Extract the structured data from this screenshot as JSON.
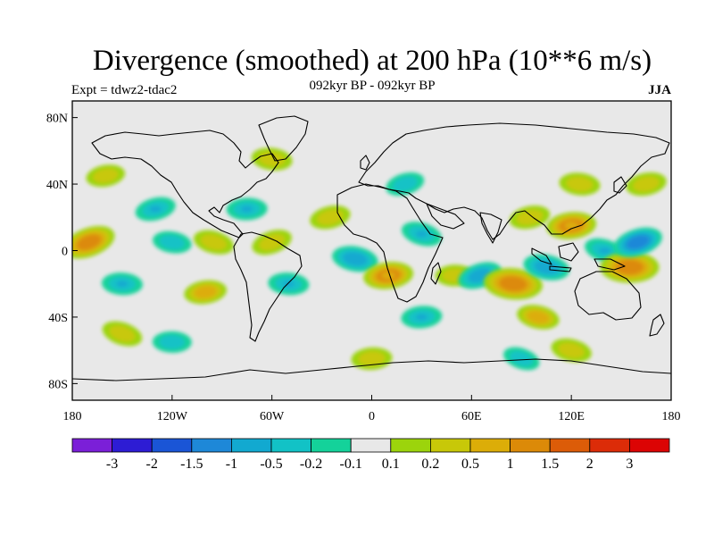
{
  "title": "Divergence (smoothed) at 200 hPa (10**6 m/s)",
  "experiment": "Expt = tdwz2-tdac2",
  "subtitle": "092kyr BP - 092kyr BP",
  "season": "JJA",
  "map": {
    "projection": "cylindrical-equidistant",
    "lon_range": [
      -180,
      180
    ],
    "lat_range": [
      -90,
      90
    ],
    "x_ticks": [
      {
        "lon": -180,
        "label": "180"
      },
      {
        "lon": -120,
        "label": "120W"
      },
      {
        "lon": -60,
        "label": "60W"
      },
      {
        "lon": 0,
        "label": "0"
      },
      {
        "lon": 60,
        "label": "60E"
      },
      {
        "lon": 120,
        "label": "120E"
      },
      {
        "lon": 180,
        "label": "180"
      }
    ],
    "y_ticks": [
      {
        "lat": 80,
        "label": "80N"
      },
      {
        "lat": 40,
        "label": "40N"
      },
      {
        "lat": 0,
        "label": "0"
      },
      {
        "lat": -40,
        "label": "40S"
      },
      {
        "lat": -80,
        "label": "80S"
      }
    ],
    "background_color": "#e8e8e8",
    "coastline_color": "#000000"
  },
  "colorbar": {
    "colors": [
      "#7b1fd8",
      "#2d1cd4",
      "#1a55d6",
      "#1e88d8",
      "#12a9d0",
      "#12c2c6",
      "#14d29a",
      "#e8e8e8",
      "#9cd40c",
      "#c8c808",
      "#dcad08",
      "#dc8a08",
      "#dc5c08",
      "#dc2c08",
      "#dc0404"
    ],
    "labels": [
      "-3",
      "-2",
      "-1.5",
      "-1",
      "-0.5",
      "-0.2",
      "-0.1",
      "0.1",
      "0.2",
      "0.5",
      "1",
      "1.5",
      "2",
      "3"
    ]
  },
  "chart_data": {
    "type": "heatmap",
    "title": "Divergence (smoothed) at 200 hPa (10**6 m/s)",
    "subtitle": "092kyr BP - 092kyr BP",
    "levels": [
      -3,
      -2,
      -1.5,
      -1,
      -0.5,
      -0.2,
      -0.1,
      0.1,
      0.2,
      0.5,
      1,
      1.5,
      2,
      3
    ],
    "xlim": [
      -180,
      180
    ],
    "ylim": [
      -90,
      90
    ],
    "features": [
      {
        "lon": -170,
        "lat": 5,
        "value": 1.2
      },
      {
        "lon": -150,
        "lat": -20,
        "value": -0.5
      },
      {
        "lon": -130,
        "lat": 25,
        "value": -0.5
      },
      {
        "lon": -120,
        "lat": 5,
        "value": -0.4
      },
      {
        "lon": -100,
        "lat": -25,
        "value": 0.6
      },
      {
        "lon": -95,
        "lat": 5,
        "value": 0.5
      },
      {
        "lon": -75,
        "lat": 25,
        "value": -0.5
      },
      {
        "lon": -60,
        "lat": 5,
        "value": 0.5
      },
      {
        "lon": -50,
        "lat": -20,
        "value": -0.5
      },
      {
        "lon": -25,
        "lat": 20,
        "value": 0.5
      },
      {
        "lon": -10,
        "lat": -5,
        "value": -0.8
      },
      {
        "lon": 10,
        "lat": -15,
        "value": 1.0
      },
      {
        "lon": 30,
        "lat": 10,
        "value": -0.5
      },
      {
        "lon": 50,
        "lat": -15,
        "value": 0.4
      },
      {
        "lon": 65,
        "lat": -15,
        "value": -0.7
      },
      {
        "lon": 85,
        "lat": -20,
        "value": 1.5
      },
      {
        "lon": 95,
        "lat": 20,
        "value": 0.5
      },
      {
        "lon": 105,
        "lat": -10,
        "value": -0.8
      },
      {
        "lon": 120,
        "lat": 15,
        "value": 1.0
      },
      {
        "lon": 140,
        "lat": 0,
        "value": -0.5
      },
      {
        "lon": 155,
        "lat": -10,
        "value": 1.5
      },
      {
        "lon": 160,
        "lat": 5,
        "value": -1.0
      },
      {
        "lon": 125,
        "lat": 40,
        "value": 0.5
      },
      {
        "lon": 165,
        "lat": 40,
        "value": 0.5
      },
      {
        "lon": 100,
        "lat": -40,
        "value": 0.6
      },
      {
        "lon": 30,
        "lat": -40,
        "value": -0.5
      },
      {
        "lon": -150,
        "lat": -50,
        "value": 0.5
      },
      {
        "lon": -120,
        "lat": -55,
        "value": -0.4
      },
      {
        "lon": 20,
        "lat": 40,
        "value": -0.4
      },
      {
        "lon": -60,
        "lat": 55,
        "value": 0.5
      },
      {
        "lon": -160,
        "lat": 45,
        "value": 0.4
      },
      {
        "lon": 120,
        "lat": -60,
        "value": 0.5
      },
      {
        "lon": 0,
        "lat": -65,
        "value": 0.5
      },
      {
        "lon": 90,
        "lat": -65,
        "value": -0.3
      }
    ]
  }
}
